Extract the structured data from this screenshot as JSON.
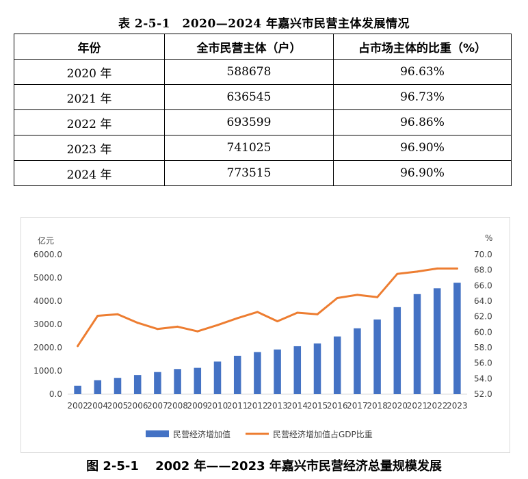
{
  "table": {
    "caption": "表 2-5-1　2020—2024 年嘉兴市民营主体发展情况",
    "headers": [
      "年份",
      "全市民营主体（户）",
      "占市场主体的比重（%）"
    ],
    "rows": [
      [
        "2020 年",
        "588678",
        "96.63%"
      ],
      [
        "2021 年",
        "636545",
        "96.73%"
      ],
      [
        "2022 年",
        "693599",
        "96.86%"
      ],
      [
        "2023 年",
        "741025",
        "96.90%"
      ],
      [
        "2024 年",
        "773515",
        "96.90%"
      ]
    ]
  },
  "figure_caption": "图 2-5-1　 2002 年——2023 年嘉兴市民营经济总量规模发展",
  "chart_data": {
    "type": "bar",
    "categories": [
      "2002",
      "2004",
      "2005",
      "2006",
      "2007",
      "2008",
      "2009",
      "2010",
      "2011",
      "2012",
      "2013",
      "2014",
      "2015",
      "2016",
      "2017",
      "2018",
      "2020",
      "2021",
      "2022",
      "2023"
    ],
    "y_left": {
      "unit": "亿元",
      "min": 0,
      "max": 6000,
      "ticks": [
        "0.0",
        "1000.0",
        "2000.0",
        "3000.0",
        "4000.0",
        "5000.0",
        "6000.0"
      ]
    },
    "y_right": {
      "unit": "%",
      "min": 52,
      "max": 70,
      "ticks": [
        "52.0",
        "54.0",
        "56.0",
        "58.0",
        "60.0",
        "62.0",
        "64.0",
        "66.0",
        "68.0",
        "70.0"
      ]
    },
    "series": [
      {
        "name": "民营经济增加值",
        "type": "bar",
        "axis": "left",
        "color": "#4472c4",
        "values": [
          360,
          600,
          700,
          820,
          950,
          1080,
          1130,
          1400,
          1650,
          1810,
          1920,
          2060,
          2180,
          2480,
          2830,
          3210,
          3740,
          4300,
          4550,
          4790
        ]
      },
      {
        "name": "民营经济增加值占GDP比重",
        "type": "line",
        "axis": "right",
        "color": "#ed7d31",
        "values": [
          58.2,
          62.1,
          62.3,
          61.2,
          60.4,
          60.7,
          60.1,
          60.9,
          61.8,
          62.6,
          61.4,
          62.5,
          62.3,
          64.4,
          64.8,
          64.5,
          67.5,
          67.8,
          68.2,
          68.2
        ]
      }
    ],
    "legend_position": "bottom",
    "grid": false
  }
}
